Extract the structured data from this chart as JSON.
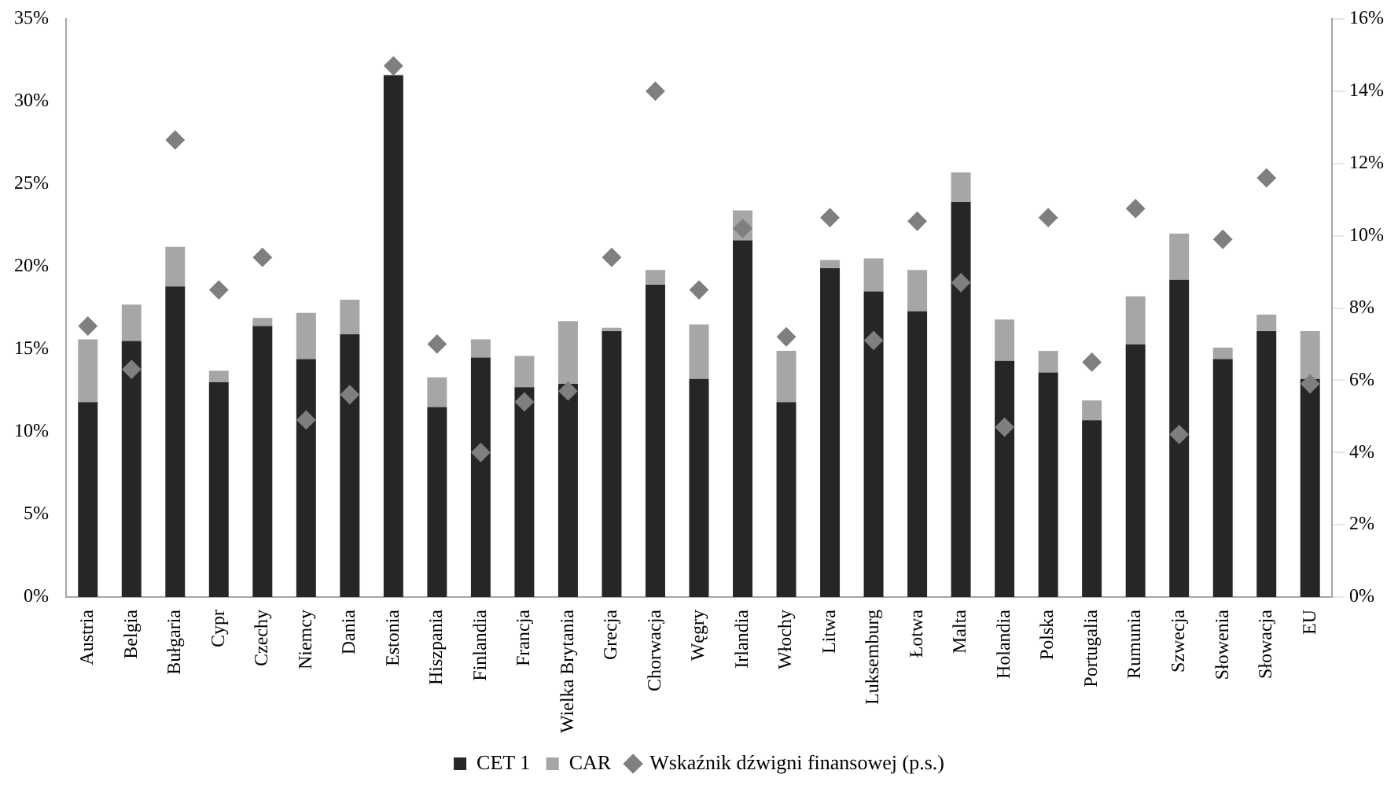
{
  "chart_data": {
    "type": "bar",
    "stacked": true,
    "legend": "bottom",
    "categories": [
      "Austria",
      "Belgia",
      "Bułgaria",
      "Cypr",
      "Czechy",
      "Niemcy",
      "Dania",
      "Estonia",
      "Hiszpania",
      "Finlandia",
      "Francja",
      "Wielka Brytania",
      "Grecja",
      "Chorwacja",
      "Węgry",
      "Irlandia",
      "Włochy",
      "Litwa",
      "Luksemburg",
      "Łotwa",
      "Malta",
      "Holandia",
      "Polska",
      "Portugalia",
      "Rumunia",
      "Szwecja",
      "Słowenia",
      "Słowacja",
      "EU"
    ],
    "series": [
      {
        "name": "CET 1",
        "color": "#262626",
        "values": [
          11.8,
          15.5,
          18.8,
          13.0,
          16.4,
          14.4,
          15.9,
          31.6,
          11.5,
          14.5,
          12.7,
          12.9,
          16.1,
          18.9,
          13.2,
          21.6,
          11.8,
          19.9,
          18.5,
          17.3,
          23.9,
          14.3,
          13.6,
          10.7,
          15.3,
          19.2,
          14.4,
          16.1,
          13.2
        ]
      },
      {
        "name": "CAR",
        "color": "#a6a6a6",
        "values": [
          3.8,
          2.2,
          2.4,
          0.7,
          0.5,
          2.8,
          2.1,
          0,
          1.8,
          1.1,
          1.9,
          3.8,
          0.2,
          0.9,
          3.3,
          1.8,
          3.1,
          0.5,
          2.0,
          2.5,
          1.8,
          2.5,
          1.3,
          1.2,
          2.9,
          2.8,
          0.7,
          1.0,
          2.9
        ]
      },
      {
        "name": "Wskaźnik dźwigni finansowej (p.s.)",
        "type": "scatter",
        "axis": "y2",
        "marker": "diamond",
        "color": "#7f7f7f",
        "x": [
          "Austria",
          "Belgia",
          "Bułgaria",
          "Cypr",
          "Czechy",
          "Niemcy",
          "Dania",
          "Estonia",
          "Hiszpania",
          "Finlandia",
          "Francja",
          "Wielka Brytania",
          "Grecja",
          "Chorwacja",
          "Węgry",
          "Irlandia",
          "Włochy",
          "Litwa",
          "Luksemburg",
          "Łotwa",
          "Malta",
          "Holandia",
          "Polska",
          "Portugalia",
          "Rumunia",
          "Szwecja",
          "Słowenia",
          "Słowacja",
          "EU"
        ],
        "values": [
          7.5,
          6.3,
          12.65,
          8.5,
          9.4,
          4.9,
          5.6,
          14.7,
          7.0,
          4.0,
          5.4,
          5.7,
          9.4,
          14.0,
          8.5,
          10.2,
          7.2,
          10.5,
          7.1,
          10.4,
          8.7,
          4.7,
          10.5,
          6.5,
          10.75,
          4.5,
          9.9,
          11.6,
          5.9
        ]
      }
    ],
    "ylim": [
      0,
      35
    ],
    "yticks": [
      {
        "value": 0,
        "label": "0%"
      },
      {
        "value": 5,
        "label": "5%"
      },
      {
        "value": 10,
        "label": "10%"
      },
      {
        "value": 15,
        "label": "15%"
      },
      {
        "value": 20,
        "label": "20%"
      },
      {
        "value": 25,
        "label": "25%"
      },
      {
        "value": 30,
        "label": "30%"
      },
      {
        "value": 35,
        "label": "35%"
      }
    ],
    "y2lim": [
      0,
      16
    ],
    "y2ticks": [
      {
        "value": 0,
        "label": "0%"
      },
      {
        "value": 2,
        "label": "2%"
      },
      {
        "value": 4,
        "label": "4%"
      },
      {
        "value": 6,
        "label": "6%"
      },
      {
        "value": 8,
        "label": "8%"
      },
      {
        "value": 10,
        "label": "10%"
      },
      {
        "value": 12,
        "label": "12%"
      },
      {
        "value": 14,
        "label": "14%"
      },
      {
        "value": 16,
        "label": "16%"
      }
    ]
  }
}
